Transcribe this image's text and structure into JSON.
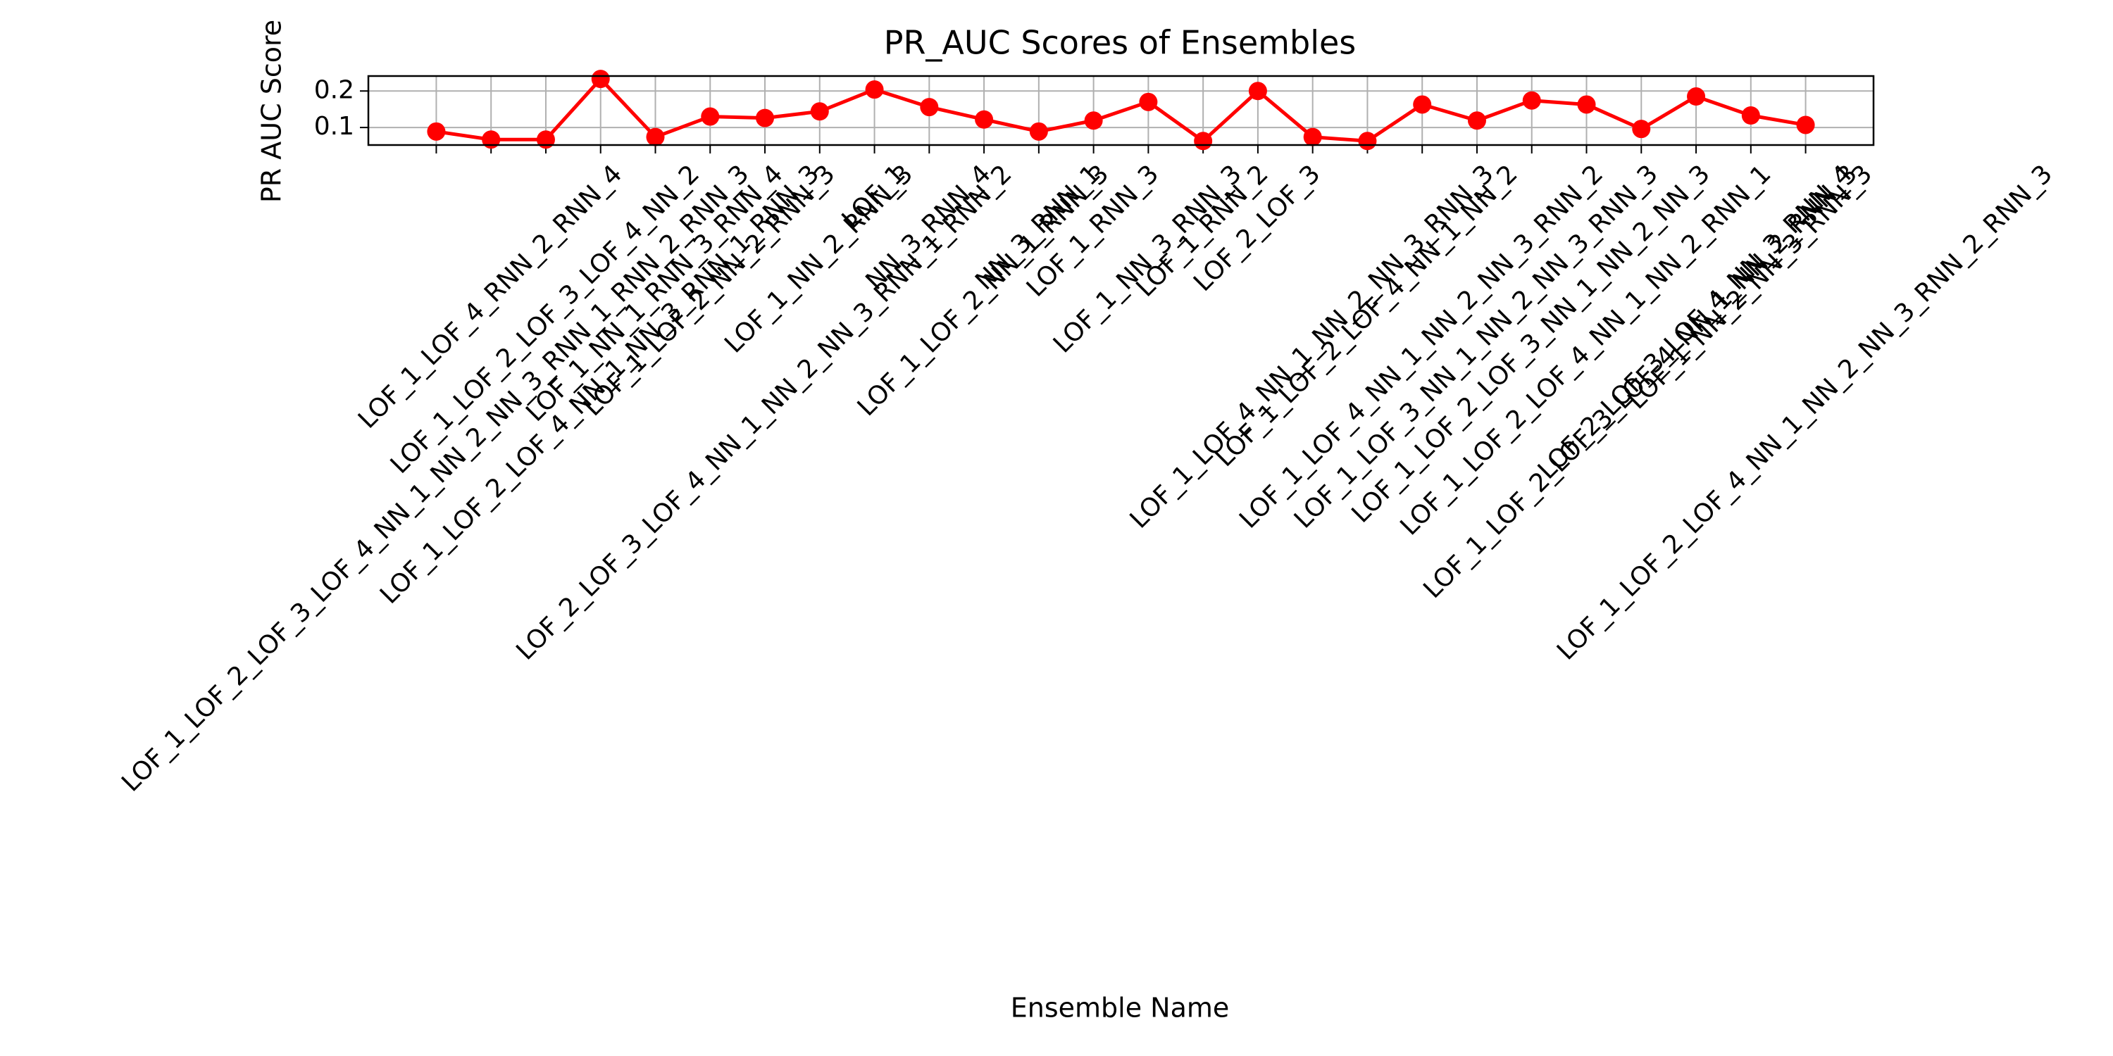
{
  "chart_data": {
    "type": "line",
    "title": "PR_AUC Scores of Ensembles",
    "xlabel": "Ensemble Name",
    "ylabel": "PR AUC Score",
    "categories": [
      "LOF_1_LOF_2_LOF_3_LOF_4_NN_1_NN_2_NN_3_RNN_1_RNN_2_RNN_3",
      "LOF_1_LOF_4_RNN_2_RNN_4",
      "LOF_1_LOF_2_LOF_3_LOF_4_NN_2",
      "LOF_1_LOF_2_LOF_4_NN_1_NN_3_RNN_1_RNN_3",
      "LOF_1_NN_1_RNN_3_RNN_4",
      "LOF_1_LOF_2_NN_2_RNN_3",
      "LOF_2_LOF_3_LOF_4_NN_1_NN_2_NN_3_RNN_1_RNN_2",
      "LOF_1_NN_2_RNN_3",
      "LOF_1",
      "NN_3_RNN_4",
      "LOF_1_LOF_2_NN_1_RNN_3",
      "NN_3_RNN_1",
      "LOF_1_RNN_3",
      "LOF_1_NN_3_RNN_3",
      "LOF_1_RNN_2",
      "LOF_2_LOF_3",
      "LOF_1_LOF_4_NN_1_NN_2_NN_3_RNN_3",
      "LOF_1_LOF_2_LOF_4_NN_1_NN_2",
      "LOF_1_LOF_4_NN_1_NN_2_NN_3_RNN_2",
      "LOF_1_LOF_3_NN_1_NN_2_NN_3_RNN_3",
      "LOF_1_LOF_2_LOF_3_NN_1_NN_2_NN_3",
      "LOF_1_LOF_2_LOF_4_NN_1_NN_2_RNN_1",
      "LOF_1_LOF_2_LOF_3_LOF_4_NN_1_NN_2_RNN_3",
      "LOF_2_LOF_3_LOF_4_NN_3_RNN_4",
      "LOF_1_NN_2_NN_3_RNN_3",
      "LOF_1_LOF_2_LOF_4_NN_1_NN_2_NN_3_RNN_2_RNN_3"
    ],
    "values": [
      0.089,
      0.067,
      0.067,
      0.233,
      0.074,
      0.13,
      0.126,
      0.144,
      0.204,
      0.156,
      0.122,
      0.089,
      0.119,
      0.17,
      0.063,
      0.2,
      0.074,
      0.063,
      0.163,
      0.119,
      0.174,
      0.163,
      0.096,
      0.185,
      0.133,
      0.107
    ],
    "color": "#ff0000",
    "ylim": [
      0.052,
      0.241
    ],
    "yticks": [
      0.1,
      0.2
    ],
    "grid": true
  }
}
